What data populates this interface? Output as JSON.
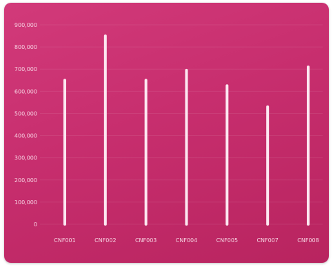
{
  "chart_data": {
    "type": "bar",
    "title": "",
    "xlabel": "",
    "ylabel": "",
    "categories": [
      "CNF001",
      "CNF002",
      "CNF003",
      "CNF004",
      "CNF005",
      "CNF007",
      "CNF008"
    ],
    "values": [
      650000,
      850000,
      650000,
      695000,
      625000,
      530000,
      710000
    ],
    "ylim": [
      0,
      900000
    ],
    "yticks": [
      0,
      100000,
      200000,
      300000,
      400000,
      500000,
      600000,
      700000,
      800000,
      900000
    ],
    "ytick_labels": [
      "0",
      "100,000",
      "200,000",
      "300,000",
      "400,000",
      "500,000",
      "600,000",
      "700,000",
      "800,000",
      "900,000"
    ],
    "grid": true,
    "colors": {
      "background": "#c92f70",
      "bar": "#fde7f1",
      "text": "#f6d3e2"
    }
  }
}
